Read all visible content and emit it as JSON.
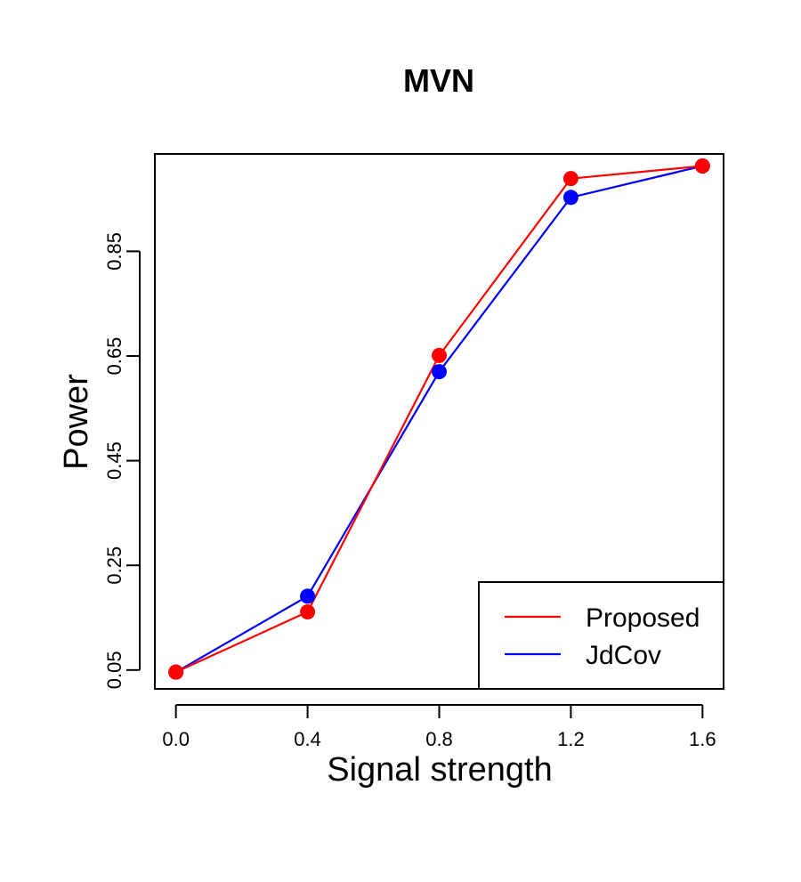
{
  "chart_data": {
    "type": "line",
    "title": "MVN",
    "xlabel": "Signal strength",
    "ylabel": "Power",
    "x": [
      0.0,
      0.4,
      0.8,
      1.2,
      1.6
    ],
    "xticks": [
      "0.0",
      "0.4",
      "0.8",
      "1.2",
      "1.6"
    ],
    "yticks": [
      "0.05",
      "0.25",
      "0.45",
      "0.65",
      "0.85"
    ],
    "ytick_values": [
      0.05,
      0.25,
      0.45,
      0.65,
      0.85
    ],
    "xlim": [
      -0.064,
      1.664
    ],
    "ylim": [
      0.014,
      1.036
    ],
    "grid": false,
    "legend_position": "bottom-right",
    "series": [
      {
        "name": "Proposed",
        "color": "#ff0000",
        "values": [
          0.046,
          0.161,
          0.651,
          0.989,
          1.013
        ]
      },
      {
        "name": "JdCov",
        "color": "#0000ff",
        "values": [
          0.046,
          0.191,
          0.62,
          0.953,
          1.013
        ]
      }
    ]
  }
}
